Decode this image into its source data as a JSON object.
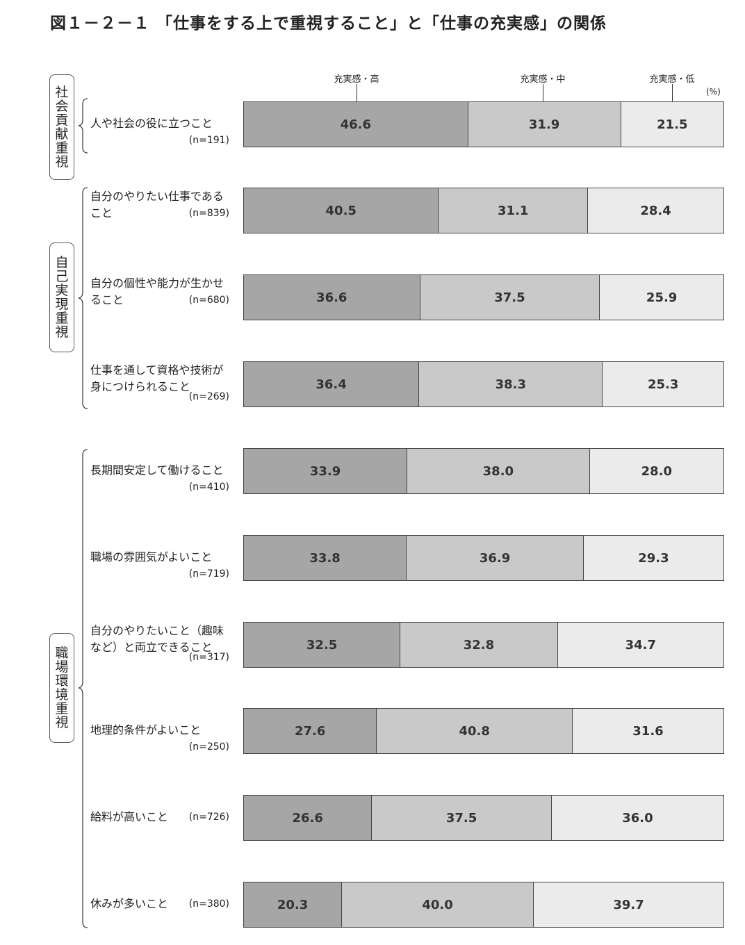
{
  "title": "図１－２－１ 「仕事をする上で重視すること」と「仕事の充実感」の関係",
  "legend": {
    "high": "充実感・高",
    "mid": "充実感・中",
    "low": "充実感・低",
    "unit": "(%)"
  },
  "groups": [
    {
      "name": "社会貢献重視",
      "chars": [
        "社",
        "会",
        "貢",
        "献",
        "重",
        "視"
      ]
    },
    {
      "name": "自己実現重視",
      "chars": [
        "自",
        "己",
        "実",
        "現",
        "重",
        "視"
      ]
    },
    {
      "name": "職場環境重視",
      "chars": [
        "職",
        "場",
        "環",
        "境",
        "重",
        "視"
      ]
    }
  ],
  "rows": [
    {
      "line1": "人や社会の役に立つこと",
      "line2": "",
      "n": "(n=191)"
    },
    {
      "line1": "自分のやりたい仕事である",
      "line2": "こと",
      "n": "(n=839)"
    },
    {
      "line1": "自分の個性や能力が生かせ",
      "line2": "ること",
      "n": "(n=680)"
    },
    {
      "line1": "仕事を通して資格や技術が",
      "line2": "身につけられること",
      "n": "(n=269)"
    },
    {
      "line1": "長期間安定して働けること",
      "line2": "",
      "n": "(n=410)"
    },
    {
      "line1": "職場の雰囲気がよいこと",
      "line2": "",
      "n": "(n=719)"
    },
    {
      "line1": "自分のやりたいこと（趣味",
      "line2": "など）と両立できること",
      "n": "(n=317)"
    },
    {
      "line1": "地理的条件がよいこと",
      "line2": "",
      "n": "(n=250)"
    },
    {
      "line1": "給料が高いこと",
      "line2": "",
      "n": "(n=726)"
    },
    {
      "line1": "休みが多いこと",
      "line2": "",
      "n": "(n=380)"
    }
  ],
  "chart_data": {
    "type": "bar",
    "orientation": "horizontal",
    "stacked": true,
    "title": "図１－２－１ 「仕事をする上で重視すること」と「仕事の充実感」の関係",
    "unit": "(%)",
    "categories": [
      "人や社会の役に立つこと",
      "自分のやりたい仕事であること",
      "自分の個性や能力が生かせること",
      "仕事を通して資格や技術が身につけられること",
      "長期間安定して働けること",
      "職場の雰囲気がよいこと",
      "自分のやりたいこと（趣味など）と両立できること",
      "地理的条件がよいこと",
      "給料が高いこと",
      "休みが多いこと"
    ],
    "series": [
      {
        "name": "充実感・高",
        "values": [
          46.6,
          40.5,
          36.6,
          36.4,
          33.9,
          33.8,
          32.5,
          27.6,
          26.6,
          20.3
        ]
      },
      {
        "name": "充実感・中",
        "values": [
          31.9,
          31.1,
          37.5,
          38.3,
          38.0,
          36.9,
          32.8,
          40.8,
          37.5,
          40.0
        ]
      },
      {
        "name": "充実感・低",
        "values": [
          21.5,
          28.4,
          25.9,
          25.3,
          28.0,
          29.3,
          34.7,
          31.6,
          36.0,
          39.7
        ]
      }
    ],
    "xlim": [
      0,
      100
    ],
    "colors": {
      "high": "#a6a6a6",
      "mid": "#c9c9c9",
      "low": "#ebebeb"
    }
  }
}
